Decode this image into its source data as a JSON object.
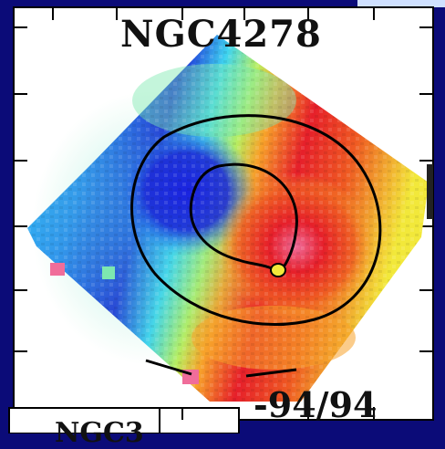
{
  "figure": {
    "title": "NGC4278",
    "velocity_range": "-94/94",
    "lower_panel_label_partial": "NGC3",
    "colors": {
      "frame": "#0b0b78",
      "panel_bg": "#ffffff",
      "contour": "#000000",
      "approaching": "#1030e0",
      "receding": "#e82020"
    },
    "colormap": [
      "#1c2bd8",
      "#2a8cf0",
      "#3fd4f0",
      "#7de8b0",
      "#b8ee60",
      "#f2e83a",
      "#f7a22a",
      "#ef5a22",
      "#e61f2a",
      "#f06d9a"
    ]
  }
}
